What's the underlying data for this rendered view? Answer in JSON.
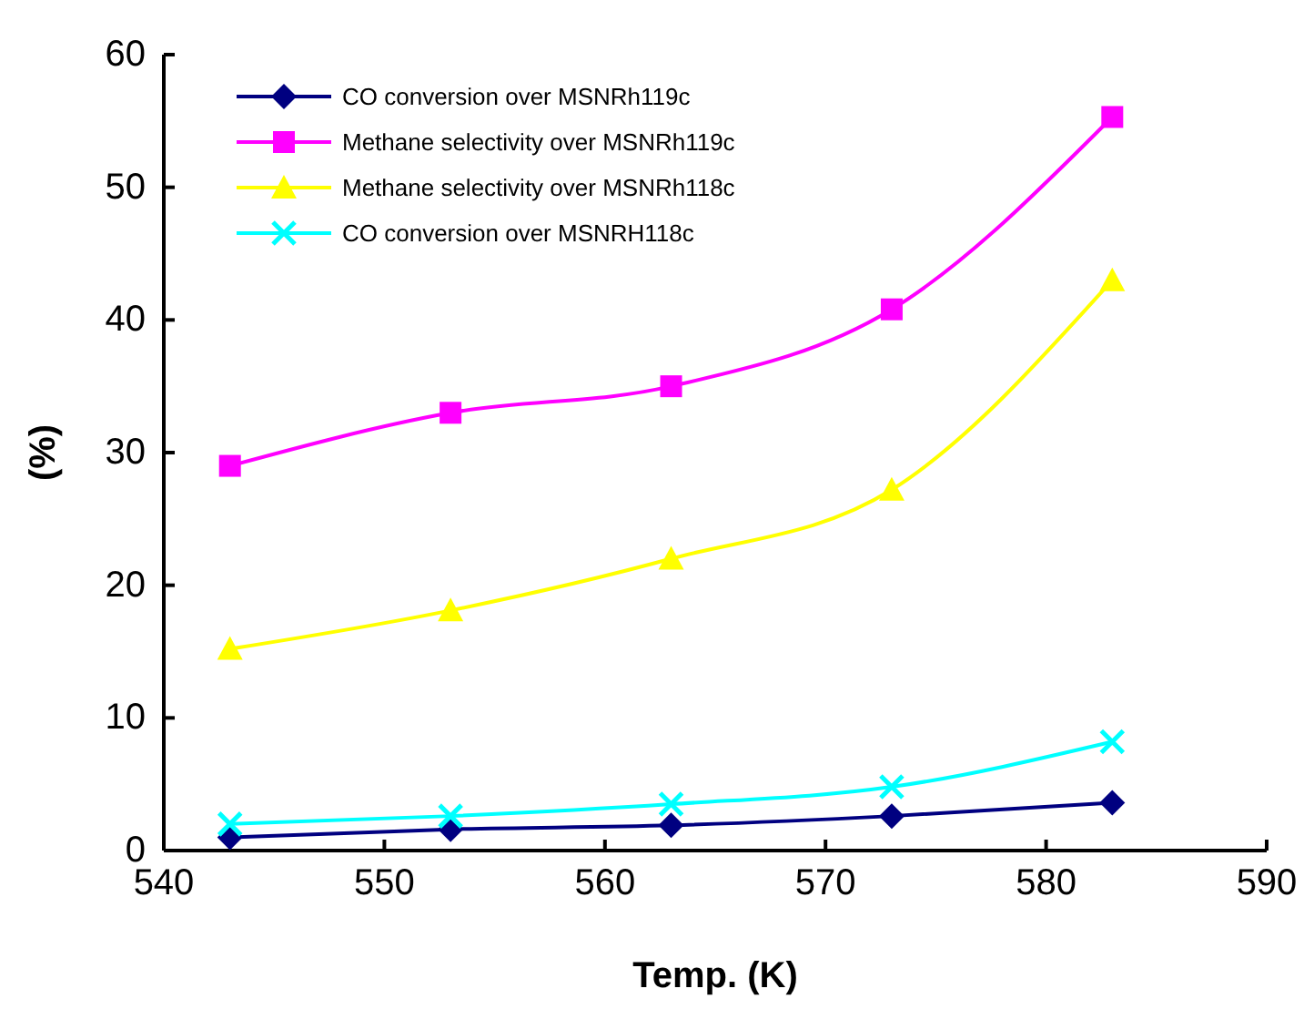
{
  "chart_data": {
    "type": "line",
    "xlabel": "Temp. (K)",
    "ylabel": "(%)",
    "x": [
      543,
      553,
      563,
      573,
      583
    ],
    "xlim": [
      540,
      590
    ],
    "xticks": [
      540,
      550,
      560,
      570,
      580,
      590
    ],
    "ylim": [
      0,
      60
    ],
    "yticks": [
      0,
      10,
      20,
      30,
      40,
      50,
      60
    ],
    "legend": "top left",
    "grid": false,
    "series": [
      {
        "name": "CO conversion over MSNRh119c",
        "color": "#000080",
        "marker": "diamond",
        "values": [
          1.0,
          1.6,
          1.9,
          2.6,
          3.6
        ]
      },
      {
        "name": "Methane selectivity over MSNRh119c",
        "color": "#ff00ff",
        "marker": "square",
        "values": [
          29,
          33,
          35,
          40.8,
          55.3
        ]
      },
      {
        "name": "Methane selectivity over MSNRh118c",
        "color": "#ffff00",
        "marker": "triangle",
        "values": [
          15.2,
          18.1,
          22,
          27.2,
          43
        ]
      },
      {
        "name": "CO conversion over MSNRH118c",
        "color": "#00ffff",
        "marker": "cross",
        "values": [
          2.0,
          2.6,
          3.5,
          4.8,
          8.2
        ]
      }
    ]
  }
}
